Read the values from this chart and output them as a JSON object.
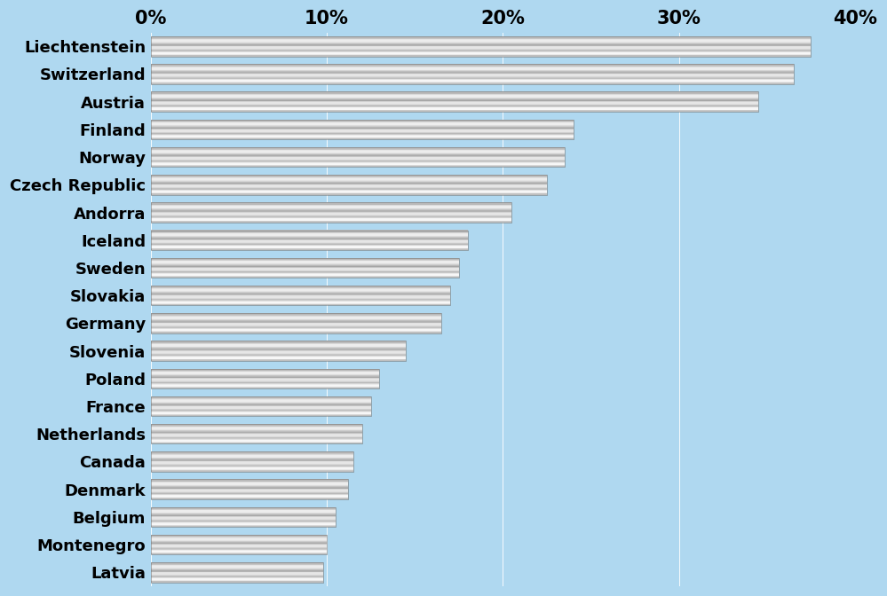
{
  "categories": [
    "Liechtenstein",
    "Switzerland",
    "Austria",
    "Finland",
    "Norway",
    "Czech Republic",
    "Andorra",
    "Iceland",
    "Sweden",
    "Slovakia",
    "Germany",
    "Slovenia",
    "Poland",
    "France",
    "Netherlands",
    "Canada",
    "Denmark",
    "Belgium",
    "Montenegro",
    "Latvia"
  ],
  "values": [
    37.5,
    36.5,
    34.5,
    24.0,
    23.5,
    22.5,
    20.5,
    18.0,
    17.5,
    17.0,
    16.5,
    14.5,
    13.0,
    12.5,
    12.0,
    11.5,
    11.2,
    10.5,
    10.0,
    9.8
  ],
  "background_color": "#afd8f0",
  "plot_bg_color": "#afd8f0",
  "xlim": [
    0,
    40
  ],
  "xticks": [
    0,
    10,
    20,
    30,
    40
  ],
  "xticklabels": [
    "0%",
    "10%",
    "20%",
    "30%",
    "40%"
  ],
  "xlabel_fontsize": 15,
  "ylabel_fontsize": 13,
  "tick_fontsize": 13
}
